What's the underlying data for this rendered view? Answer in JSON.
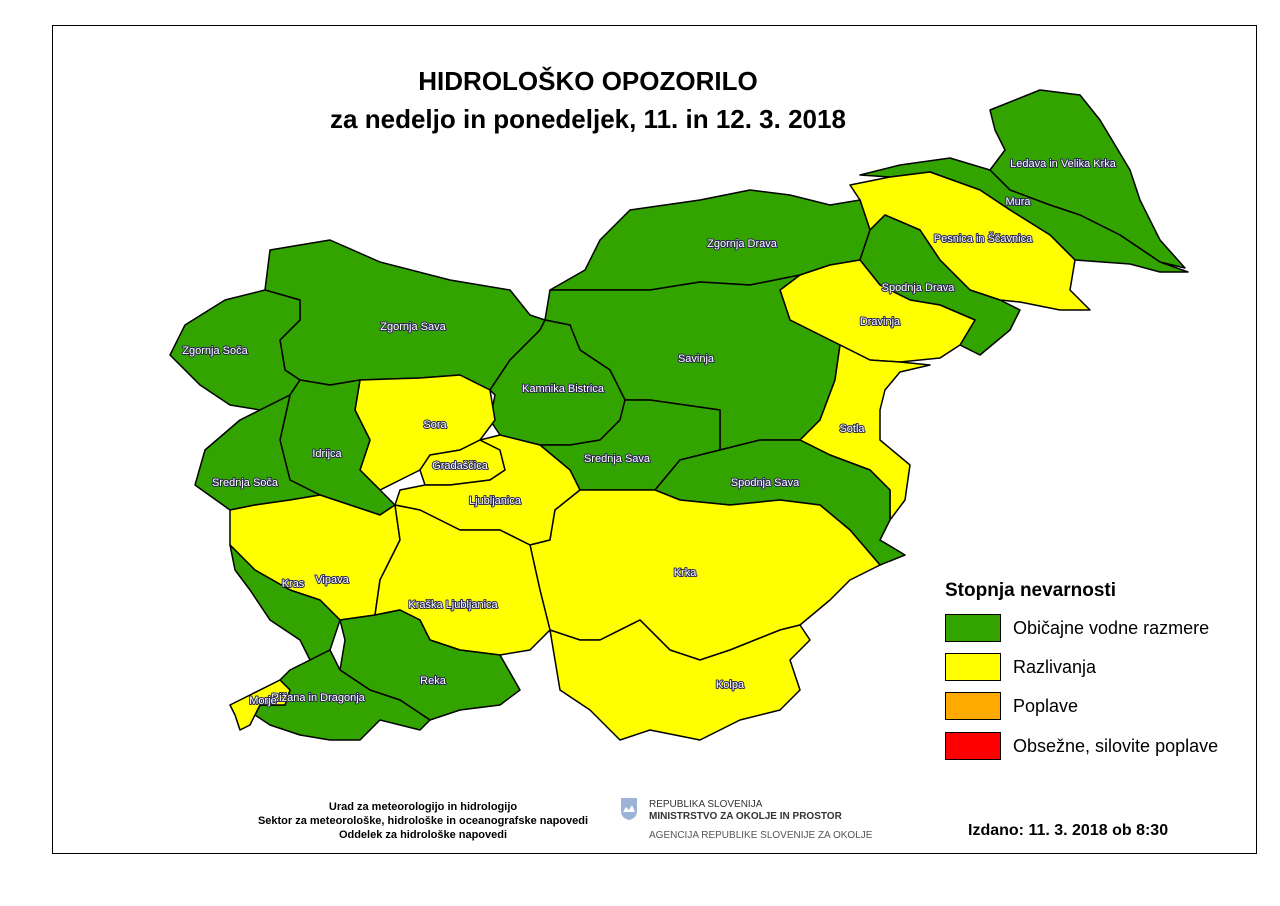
{
  "title": {
    "line1": "HIDROLOŠKO OPOZORILO",
    "line2": "za nedeljo in ponedeljek, 11. in 12. 3. 2018"
  },
  "levels": {
    "normal": {
      "label": "Običajne vodne razmere",
      "color": "#33a300"
    },
    "spill": {
      "label": "Razlivanja",
      "color": "#ffff00"
    },
    "flood": {
      "label": "Poplave",
      "color": "#ffaa00"
    },
    "severe": {
      "label": "Obsežne, silovite poplave",
      "color": "#ff0000"
    }
  },
  "legend": {
    "title": "Stopnja nevarnosti",
    "items": [
      "normal",
      "spill",
      "flood",
      "severe"
    ]
  },
  "regions": [
    {
      "name": "Ledava in Velika Krka",
      "level": "normal"
    },
    {
      "name": "Mura",
      "level": "normal"
    },
    {
      "name": "Pesnica in Ščavnica",
      "level": "spill"
    },
    {
      "name": "Zgornja Drava",
      "level": "normal"
    },
    {
      "name": "Spodnja Drava",
      "level": "normal"
    },
    {
      "name": "Dravinja",
      "level": "spill"
    },
    {
      "name": "Zgornja Sava",
      "level": "normal"
    },
    {
      "name": "Zgornja Soča",
      "level": "normal"
    },
    {
      "name": "Savinja",
      "level": "normal"
    },
    {
      "name": "Kamnika Bistrica",
      "level": "normal"
    },
    {
      "name": "Sora",
      "level": "spill"
    },
    {
      "name": "Sotla",
      "level": "spill"
    },
    {
      "name": "Idrijca",
      "level": "normal"
    },
    {
      "name": "Gradaščica",
      "level": "spill"
    },
    {
      "name": "Srednja Sava",
      "level": "normal"
    },
    {
      "name": "Srednja Soča",
      "level": "normal"
    },
    {
      "name": "Spodnja Sava",
      "level": "normal"
    },
    {
      "name": "Ljubljanica",
      "level": "spill"
    },
    {
      "name": "Vipava",
      "level": "spill"
    },
    {
      "name": "Krka",
      "level": "spill"
    },
    {
      "name": "Kras",
      "level": "normal"
    },
    {
      "name": "Kraška Ljubljanica",
      "level": "spill"
    },
    {
      "name": "Kolpa",
      "level": "spill"
    },
    {
      "name": "Reka",
      "level": "normal"
    },
    {
      "name": "Rižana in Dragonja",
      "level": "normal"
    },
    {
      "name": "Morje",
      "level": "spill"
    }
  ],
  "footer": {
    "lines": [
      "Urad za meteorologijo in hidrologijo",
      "Sektor za meteorološke, hidrološke in oceanografske napovedi",
      "Oddelek za hidrološke napovedi"
    ],
    "gov": [
      "REPUBLIKA SLOVENIJA",
      "MINISTRSTVO ZA OKOLJE IN PROSTOR",
      "AGENCIJA REPUBLIKE SLOVENIJE ZA OKOLJE"
    ],
    "issued": "Izdano: 11. 3. 2018 ob 8:30"
  }
}
